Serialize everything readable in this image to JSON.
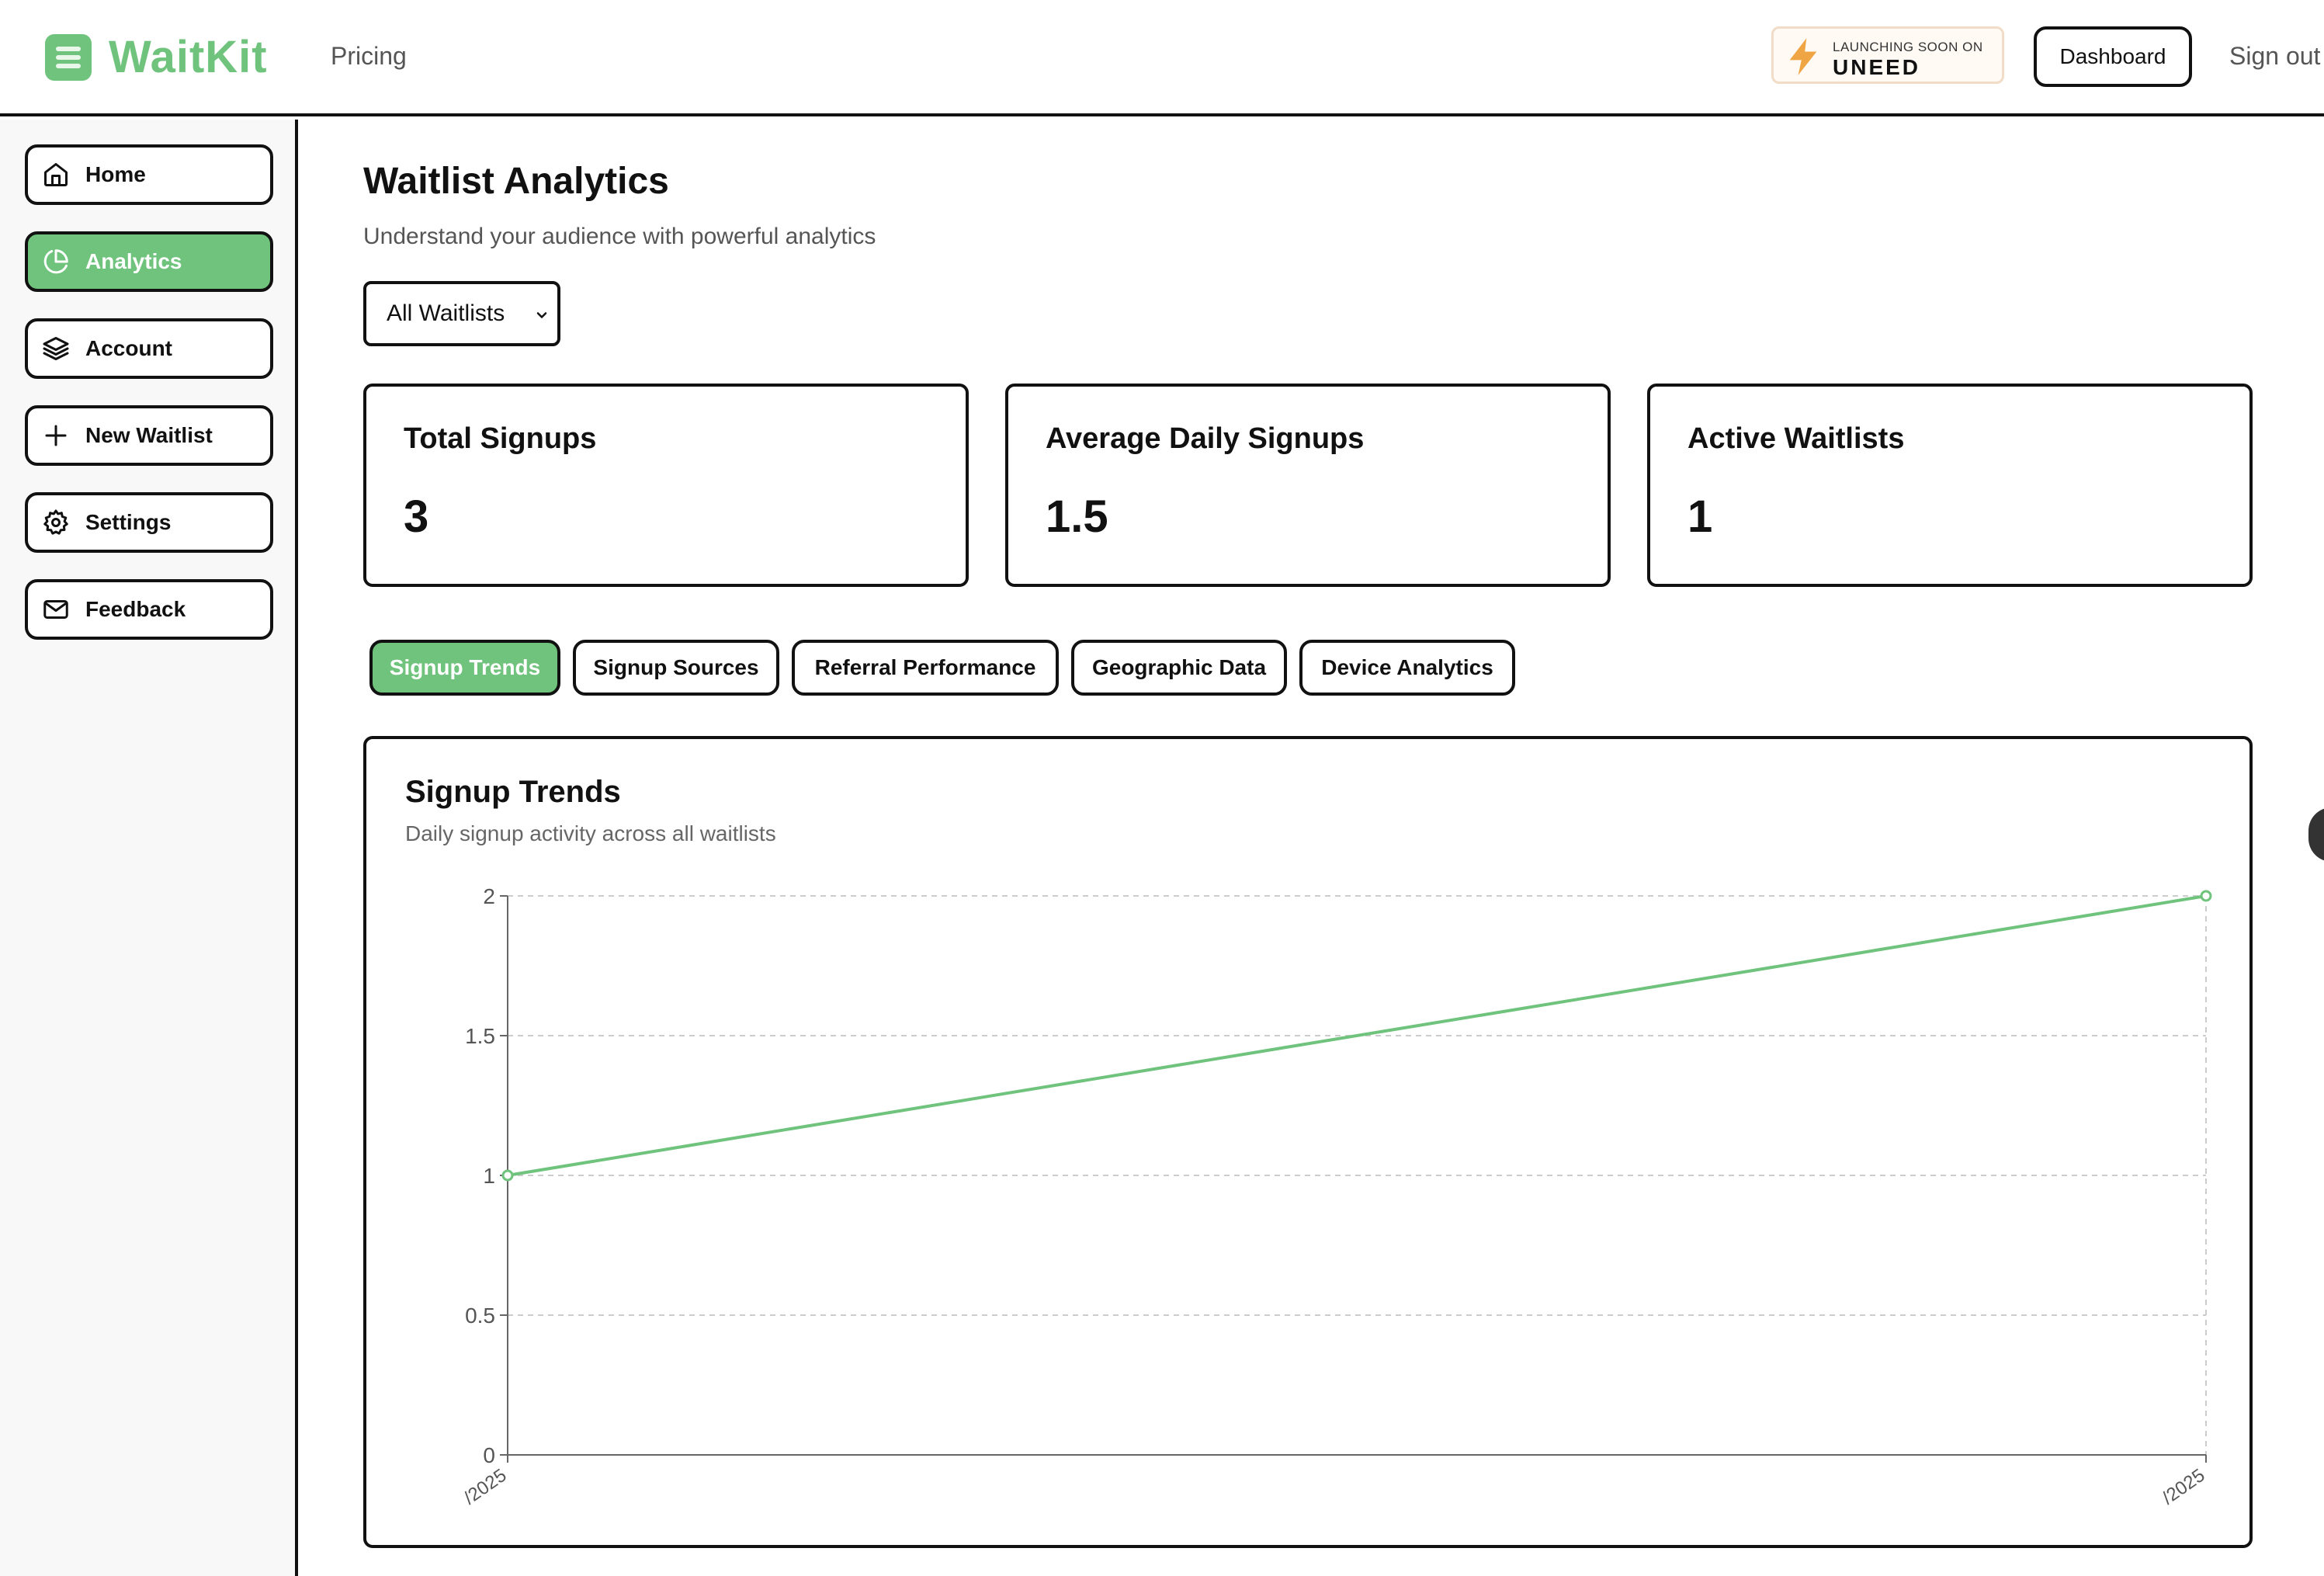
{
  "header": {
    "brand": "WaitKit",
    "nav_pricing": "Pricing",
    "badge_small": "LAUNCHING SOON ON",
    "badge_big": "UNEED",
    "dashboard_label": "Dashboard",
    "signout_label": "Sign out"
  },
  "sidebar": {
    "items": [
      {
        "label": "Home",
        "icon": "home-icon"
      },
      {
        "label": "Analytics",
        "icon": "pie-chart-icon"
      },
      {
        "label": "Account",
        "icon": "layers-icon"
      },
      {
        "label": "New Waitlist",
        "icon": "plus-icon"
      },
      {
        "label": "Settings",
        "icon": "gear-icon"
      },
      {
        "label": "Feedback",
        "icon": "mail-icon"
      }
    ]
  },
  "main": {
    "title": "Waitlist Analytics",
    "subtitle": "Understand your audience with powerful analytics",
    "waitlist_select": "All Waitlists",
    "stats": [
      {
        "title": "Total Signups",
        "value": "3"
      },
      {
        "title": "Average Daily Signups",
        "value": "1.5"
      },
      {
        "title": "Active Waitlists",
        "value": "1"
      }
    ],
    "tabs": [
      "Signup Trends",
      "Signup Sources",
      "Referral Performance",
      "Geographic Data",
      "Device Analytics"
    ]
  },
  "colors": {
    "accent": "#6fc37c",
    "border": "#111111",
    "grid": "#cccccc"
  },
  "chart_data": {
    "type": "line",
    "title": "Signup Trends",
    "subtitle": "Daily signup activity across all waitlists",
    "x": [
      "/2025",
      "/2025"
    ],
    "series": [
      {
        "values": [
          1,
          2
        ]
      }
    ],
    "yticks": [
      "0",
      "0.5",
      "1",
      "1.5",
      "2"
    ],
    "ylim": [
      0,
      2
    ],
    "grid": true,
    "color": "#6fc37c"
  }
}
